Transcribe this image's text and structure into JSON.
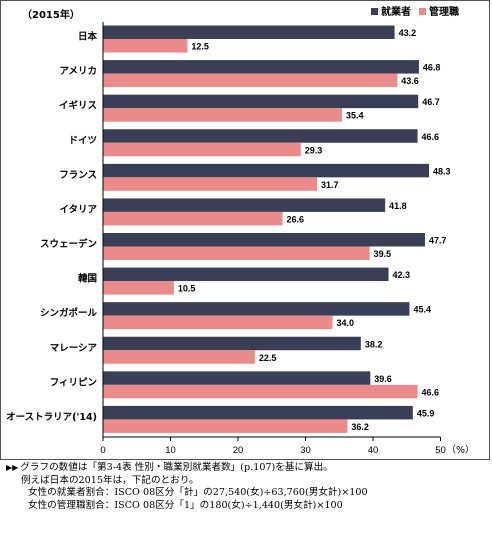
{
  "chart_data": {
    "type": "bar",
    "orientation": "horizontal",
    "year_label": "（2015年）",
    "categories": [
      "日本",
      "アメリカ",
      "イギリス",
      "ドイツ",
      "フランス",
      "イタリア",
      "スウェーデン",
      "韓国",
      "シンガポール",
      "マレーシア",
      "フィリピン",
      "オーストラリア('14)"
    ],
    "series": [
      {
        "name": "就業者",
        "color": "#3b3f55",
        "values": [
          43.2,
          46.8,
          46.7,
          46.6,
          48.3,
          41.8,
          47.7,
          42.3,
          45.4,
          38.2,
          39.6,
          45.9
        ]
      },
      {
        "name": "管理職",
        "color": "#eb8a8a",
        "values": [
          12.5,
          43.6,
          35.4,
          29.3,
          31.7,
          26.6,
          39.5,
          10.5,
          34.0,
          22.5,
          46.6,
          36.2
        ]
      }
    ],
    "value_labels": [
      [
        "43.2",
        "46.8",
        "46.7",
        "46.6",
        "48.3",
        "41.8",
        "47.7",
        "42.3",
        "45.4",
        "38.2",
        "39.6",
        "45.9"
      ],
      [
        "12.5",
        "43.6",
        "35.4",
        "29.3",
        "31.7",
        "26.6",
        "39.5",
        "10.5",
        "34.0",
        "22.5",
        "46.6",
        "36.2"
      ]
    ],
    "xlim": [
      0,
      50
    ],
    "xticks": [
      0,
      10,
      20,
      30,
      40,
      50
    ],
    "x_unit": "（%）",
    "grid": false,
    "legend_position": "top-right"
  },
  "notes": {
    "line1": "グラフの数値は「第3-4表 性別・職業別就業者数」(p.107)を基に算出。",
    "line2": "例えば日本の2015年は，下記のとおり。",
    "line3": "女性の就業者割合：ISCO 08区分「計」の27,540(女)÷63,760(男女計)×100",
    "line4": "女性の管理職割合：ISCO 08区分「1」の180(女)÷1,440(男女計)×100"
  }
}
